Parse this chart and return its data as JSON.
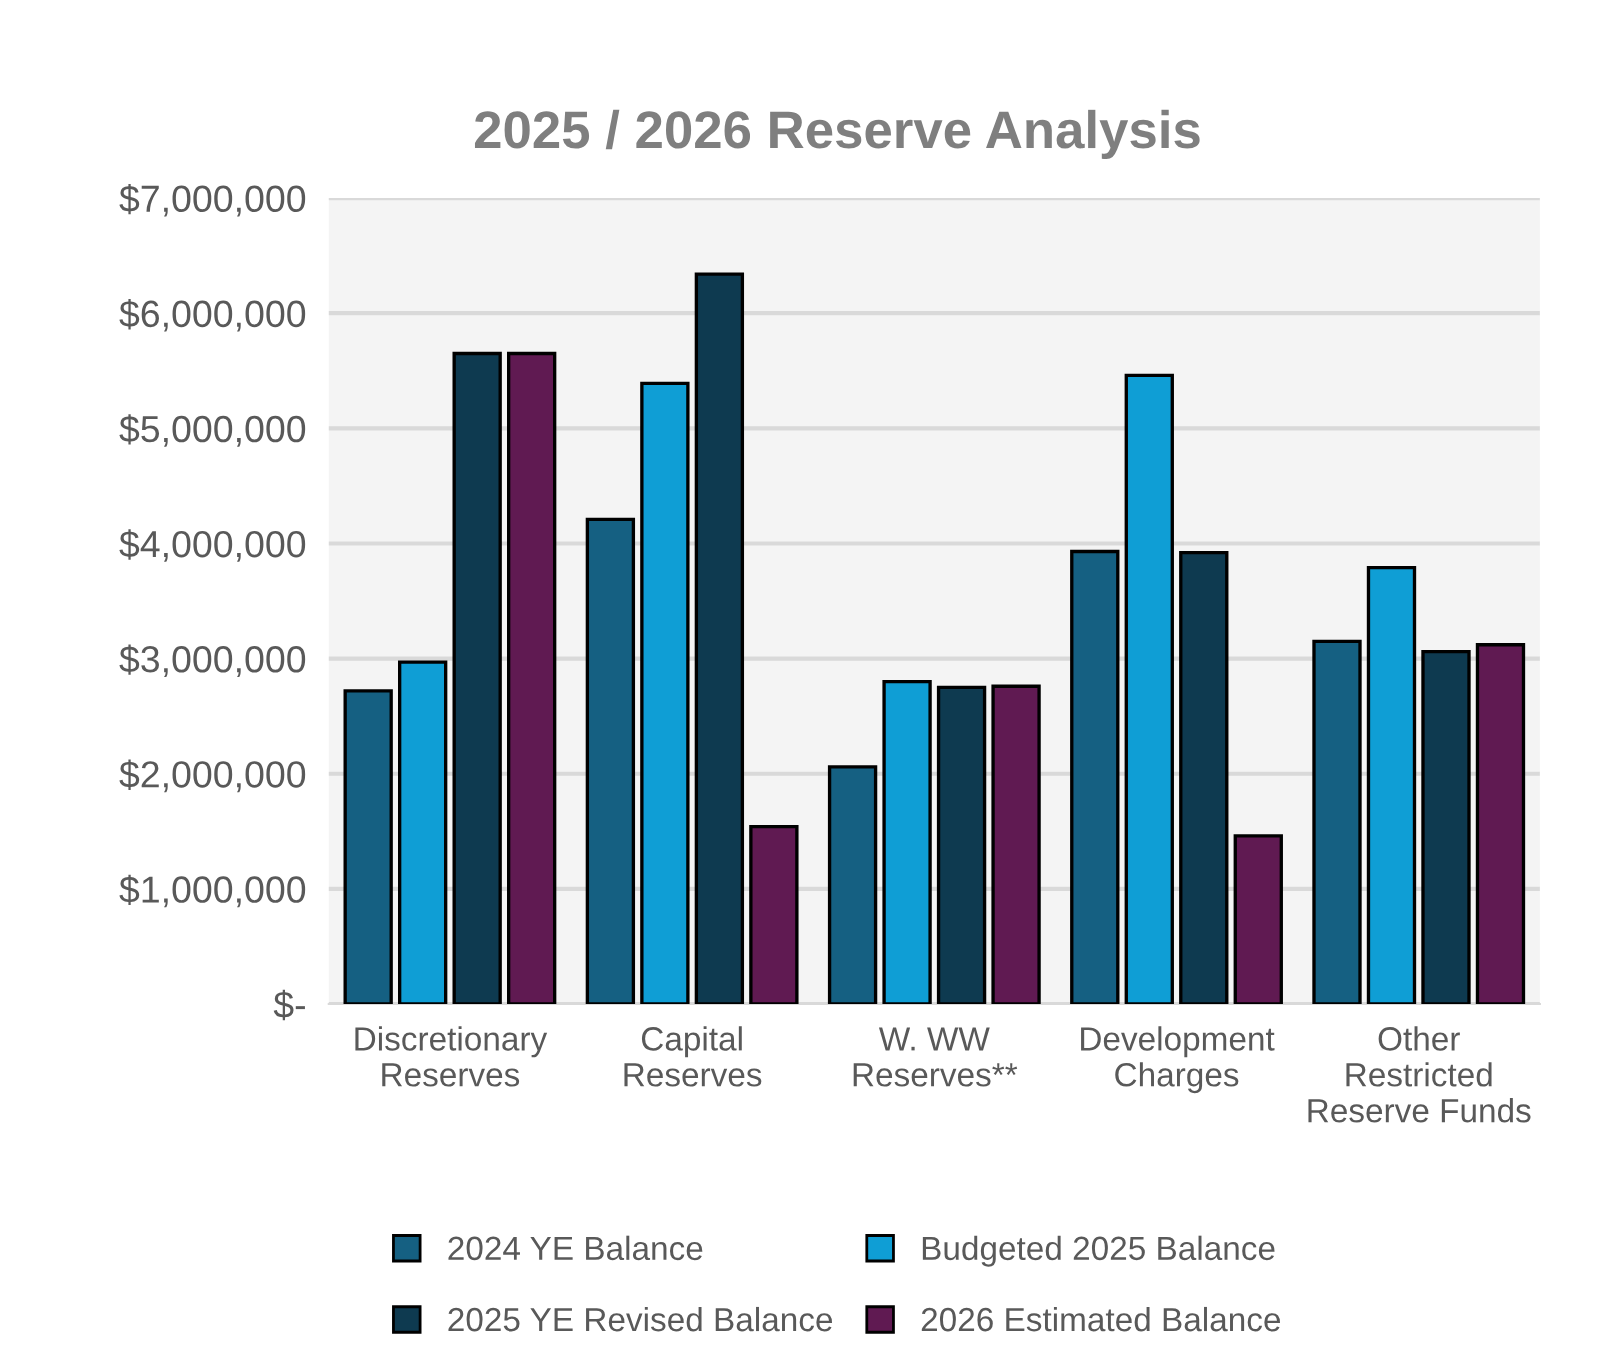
{
  "chart_data": {
    "type": "bar",
    "title": "2025 / 2026 Reserve Analysis",
    "categories": [
      "Discretionary\nReserves",
      "Capital\nReserves",
      "W. WW\nReserves**",
      "Development\nCharges",
      "Other\nRestricted\nReserve Funds"
    ],
    "series": [
      {
        "name": "2024 YE Balance",
        "color": "#156082",
        "values": [
          2720000,
          4210000,
          2060000,
          3930000,
          3150000
        ]
      },
      {
        "name": "Budgeted 2025 Balance",
        "color": "#0f9ed5",
        "values": [
          2970000,
          5390000,
          2800000,
          5460000,
          3790000
        ]
      },
      {
        "name": "2025 YE Revised Balance",
        "color": "#0e3a50",
        "values": [
          5650000,
          6340000,
          2750000,
          3920000,
          3060000
        ]
      },
      {
        "name": "2026 Estimated Balance",
        "color": "#601a52",
        "values": [
          5650000,
          1540000,
          2760000,
          1460000,
          3120000
        ]
      }
    ],
    "ylim": [
      0,
      7000000
    ],
    "yticks": [
      {
        "value": 0,
        "label": "$-"
      },
      {
        "value": 1000000,
        "label": "$1,000,000"
      },
      {
        "value": 2000000,
        "label": "$2,000,000"
      },
      {
        "value": 3000000,
        "label": "$3,000,000"
      },
      {
        "value": 4000000,
        "label": "$4,000,000"
      },
      {
        "value": 5000000,
        "label": "$5,000,000"
      },
      {
        "value": 6000000,
        "label": "$6,000,000"
      },
      {
        "value": 7000000,
        "label": "$7,000,000"
      }
    ],
    "grid": "y",
    "legend": "bottom"
  }
}
